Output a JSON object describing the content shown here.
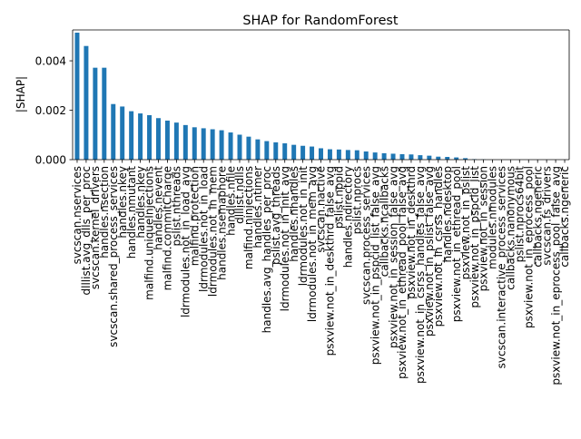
{
  "chart_data": {
    "type": "bar",
    "title": "SHAP for RandomForest",
    "xlabel": "",
    "ylabel": "|SHAP|",
    "ylim": [
      0,
      0.00525
    ],
    "yticks": [
      0.0,
      0.002,
      0.004
    ],
    "ytick_labels": [
      "0.000",
      "0.002",
      "0.004"
    ],
    "grid": false,
    "legend": "none",
    "bar_color": "#1f77b4",
    "categories": [
      "svcscan.nservices",
      "dlllist.avg_dlls_per_proc",
      "svcscan.kernel_drivers",
      "handles.nsection",
      "svcscan.shared_process_services",
      "handles.nkey",
      "handles.nmutant",
      "handles.nkey",
      "malfind.uniqueInjections",
      "handles.nevent",
      "malfind.commitCharge",
      "pslist.nthreads",
      "ldrmodules.not_in_load_avg",
      "malfind.protection",
      "ldrmodules.not_in_load",
      "ldrmodules.not_in_mem",
      "handles.nsemaphore",
      "handles.nfile",
      "dlllist.ndlls",
      "malfind.ninjections",
      "handles.ntimer",
      "handles.avg_handles_per_proc",
      "pslist.avg_threads",
      "ldrmodules.not_in_init_avg",
      "handles.nhandles",
      "ldrmodules.not_in_init",
      "ldrmodules.not_in_mem_avg",
      "svcscan.nactive",
      "psxview.not_in_deskthrd_false_avg",
      "pslist.nppid",
      "handles.ndirectory",
      "pslist.nprocs",
      "svcscan.process_services",
      "psxview.not_in_pspcid_list_false_avg",
      "callbacks.ncallbacks",
      "psxview.not_in_session_false_avg",
      "psxview.not_in_ethread_pool_false_avg",
      "psxview.not_in_deskthrd",
      "psxview.not_in_csrss_handles_false_avg",
      "psxview.not_in_pslist_false_avg",
      "psxview.not_in_csrss_handles",
      "handles.ndesktop",
      "psxview.not_in_ethread_pool",
      "psxview.not_in_pslist",
      "psxview.not_in_pspcid_list",
      "psxview.not_in_session",
      "modules.nmodules",
      "svcscan.interactive_process_services",
      "callbacks.nanonymous",
      "pslist.nprocs64bit",
      "psxview.not_in_eprocess_pool",
      "callbacks.ngeneric",
      "svcscan.fs_drivers",
      "psxview.not_in_eprocess_pool_false_avg",
      "callbacks.ngeneric"
    ],
    "values": [
      0.00514,
      0.0046,
      0.00372,
      0.00372,
      0.00225,
      0.00215,
      0.00196,
      0.00187,
      0.0018,
      0.00168,
      0.00158,
      0.0015,
      0.0014,
      0.00131,
      0.00127,
      0.00123,
      0.00119,
      0.0011,
      0.00101,
      0.00093,
      0.00082,
      0.00075,
      0.0007,
      0.00066,
      0.0006,
      0.00056,
      0.00053,
      0.00046,
      0.00042,
      0.00041,
      0.00039,
      0.00038,
      0.00033,
      0.00029,
      0.00026,
      0.00024,
      0.00022,
      0.00021,
      0.00018,
      0.00016,
      0.00012,
      0.00011,
      9e-05,
      6e-05,
      2e-05,
      1e-05,
      0.0,
      0.0,
      0.0,
      0.0,
      0.0,
      0.0,
      0.0,
      0.0,
      0.0
    ]
  }
}
